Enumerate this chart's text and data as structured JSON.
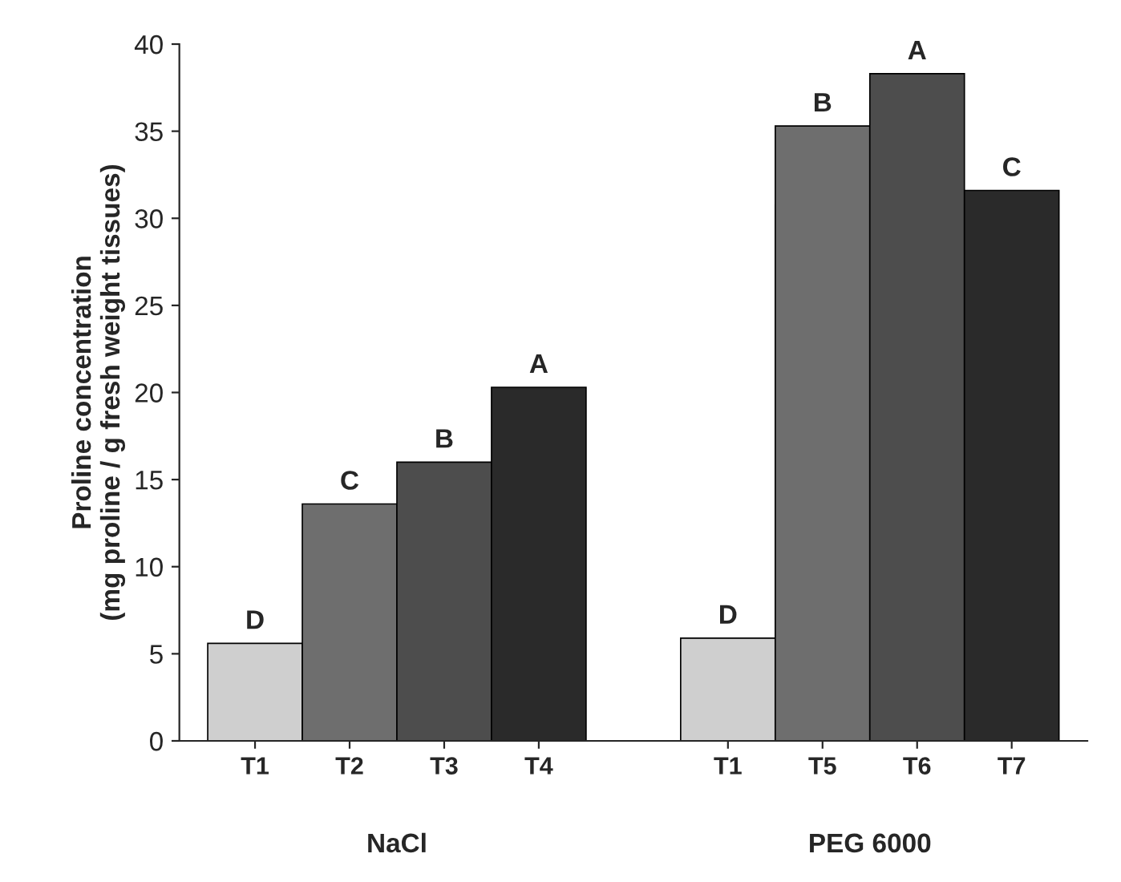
{
  "chart_data": {
    "type": "bar",
    "ylabel": "Proline concentration\n(mg proline / g fresh weight tissues)",
    "categories": [
      "T1",
      "T2",
      "T3",
      "T4",
      null,
      "T1",
      "T5",
      "T6",
      "T7"
    ],
    "values": [
      5.6,
      13.6,
      16.0,
      20.3,
      null,
      5.9,
      35.3,
      38.3,
      31.6
    ],
    "colors": [
      "#cfcfcf",
      "#6e6e6e",
      "#4d4d4d",
      "#2a2a2a",
      "#ffffff",
      "#cfcfcf",
      "#6e6e6e",
      "#4d4d4d",
      "#2a2a2a"
    ],
    "value_labels": [
      "D",
      "C",
      "B",
      "A",
      null,
      "D",
      "B",
      "A",
      "C"
    ],
    "annotations": [
      "NaCl",
      "PEG 6000"
    ],
    "ylim": [
      0,
      40
    ],
    "yticks": [
      0,
      5,
      10,
      15,
      20,
      25,
      30,
      35,
      40
    ],
    "grid": false,
    "legend": false
  }
}
